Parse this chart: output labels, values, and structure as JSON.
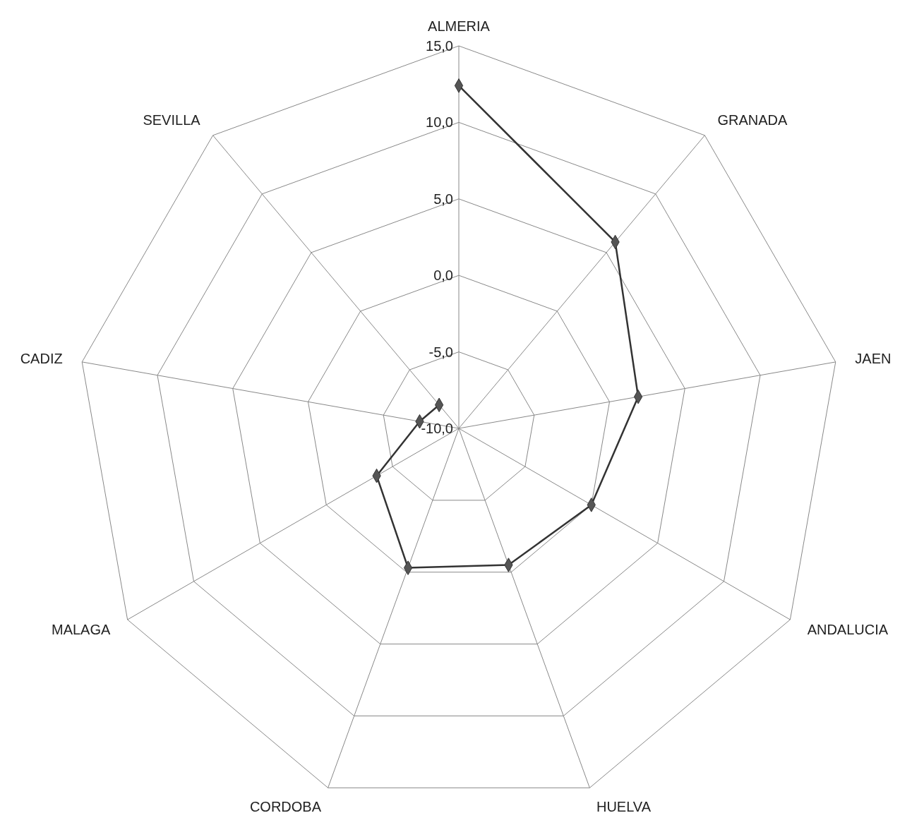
{
  "chart_data": {
    "type": "radar",
    "categories": [
      "ALMERIA",
      "GRANADA",
      "JAEN",
      "ANDALUCIA",
      "HUELVA",
      "CORDOBA",
      "MALAGA",
      "CADIZ",
      "SEVILLA"
    ],
    "series": [
      {
        "color": "#333333",
        "values": [
          12.4,
          5.9,
          1.9,
          0.0,
          -0.5,
          -0.3,
          -3.8,
          -7.4,
          -8.0
        ]
      }
    ],
    "ylim": [
      -10,
      15
    ],
    "yticks": [
      {
        "value": -10,
        "label": "-10,0"
      },
      {
        "value": -5,
        "label": "-5,0"
      },
      {
        "value": 0,
        "label": "0,0"
      },
      {
        "value": 5,
        "label": "5,0"
      },
      {
        "value": 10,
        "label": "10,0"
      },
      {
        "value": 15,
        "label": "15,0"
      }
    ],
    "marker": "diamond",
    "grid": true
  }
}
